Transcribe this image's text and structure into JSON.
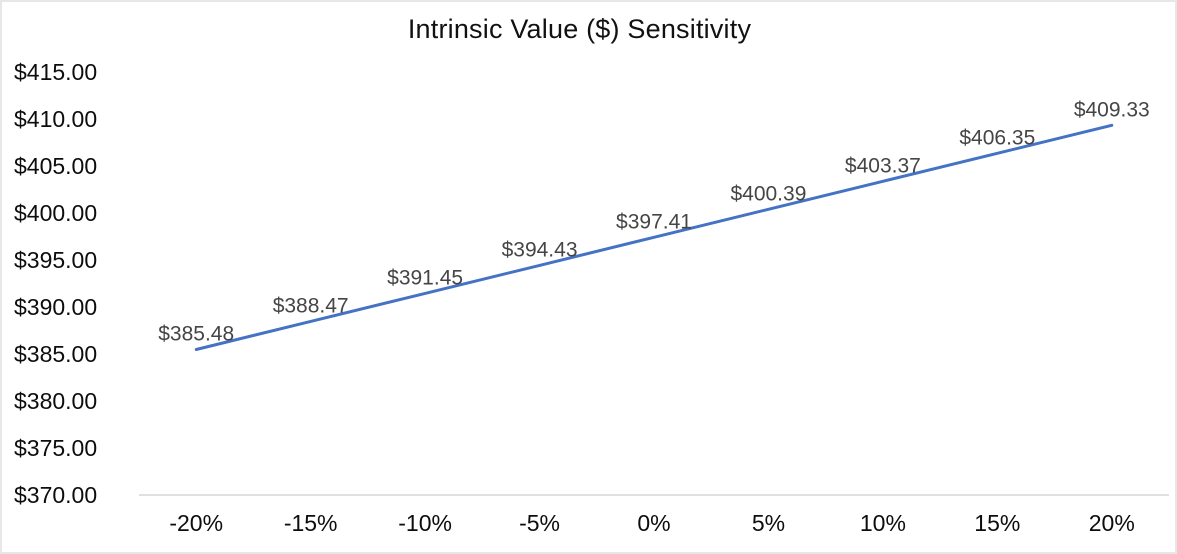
{
  "title": "Intrinsic Value ($) Sensitivity",
  "chart_data": {
    "type": "line",
    "title": "Intrinsic Value ($) Sensitivity",
    "categories": [
      "-20%",
      "-15%",
      "-10%",
      "-5%",
      "0%",
      "5%",
      "10%",
      "15%",
      "20%"
    ],
    "series": [
      {
        "name": "Intrinsic Value ($)",
        "values": [
          385.48,
          388.47,
          391.45,
          394.43,
          397.41,
          400.39,
          403.37,
          406.35,
          409.33
        ]
      }
    ],
    "data_labels": [
      "$385.48",
      "$388.47",
      "$391.45",
      "$394.43",
      "$397.41",
      "$400.39",
      "$403.37",
      "$406.35",
      "$409.33"
    ],
    "y_tick_labels": [
      "$415.00",
      "$410.00",
      "$405.00",
      "$400.00",
      "$395.00",
      "$390.00",
      "$385.00",
      "$380.00",
      "$375.00",
      "$370.00"
    ],
    "ylim": [
      370,
      415
    ],
    "y_step": 5,
    "xlabel": "",
    "ylabel": "",
    "grid": false,
    "legend": "none",
    "line_color": "#4472C4",
    "line_width": 3,
    "data_label_color": "#454545",
    "axis_text_color": "#0d0d0d",
    "axis_line_color": "#d6d6d6"
  }
}
